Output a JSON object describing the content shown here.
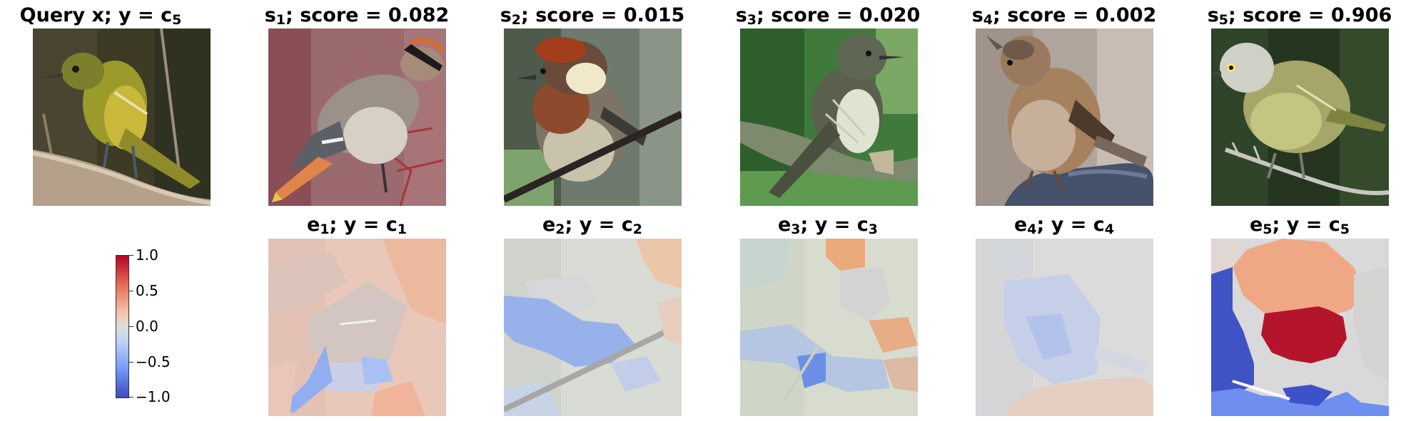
{
  "row1": [
    {
      "prefix": "Query x; y",
      "eq": " = ",
      "var": "c",
      "sub": "5"
    },
    {
      "var": "s",
      "sub": "1",
      "text": "; score = 0.082"
    },
    {
      "var": "s",
      "sub": "2",
      "text": "; score = 0.015"
    },
    {
      "var": "s",
      "sub": "3",
      "text": "; score = 0.020"
    },
    {
      "var": "s",
      "sub": "4",
      "text": "; score = 0.002"
    },
    {
      "var": "s",
      "sub": "5",
      "text": "; score = 0.906"
    }
  ],
  "row2": [
    {
      "var": "e",
      "sub": "1",
      "mid": "; y = ",
      "var2": "c",
      "sub2": "1"
    },
    {
      "var": "e",
      "sub": "2",
      "mid": "; y = ",
      "var2": "c",
      "sub2": "2"
    },
    {
      "var": "e",
      "sub": "3",
      "mid": "; y = ",
      "var2": "c",
      "sub2": "3"
    },
    {
      "var": "e",
      "sub": "4",
      "mid": "; y = ",
      "var2": "c",
      "sub2": "4"
    },
    {
      "var": "e",
      "sub": "5",
      "mid": "; y = ",
      "var2": "c",
      "sub2": "5"
    }
  ],
  "colorbar": {
    "ticks": [
      "1.0",
      "0.5",
      "0.0",
      "−0.5",
      "−1.0"
    ],
    "colormap": [
      "#b40426",
      "#dddddd",
      "#3b4cc0"
    ]
  },
  "explanation_levels": [
    {
      "image": "e1",
      "max_abs": 0.3
    },
    {
      "image": "e2",
      "max_abs": 0.4
    },
    {
      "image": "e3",
      "max_abs": 0.3
    },
    {
      "image": "e4",
      "max_abs": 0.15
    },
    {
      "image": "e5",
      "max_abs": 1.0
    }
  ]
}
